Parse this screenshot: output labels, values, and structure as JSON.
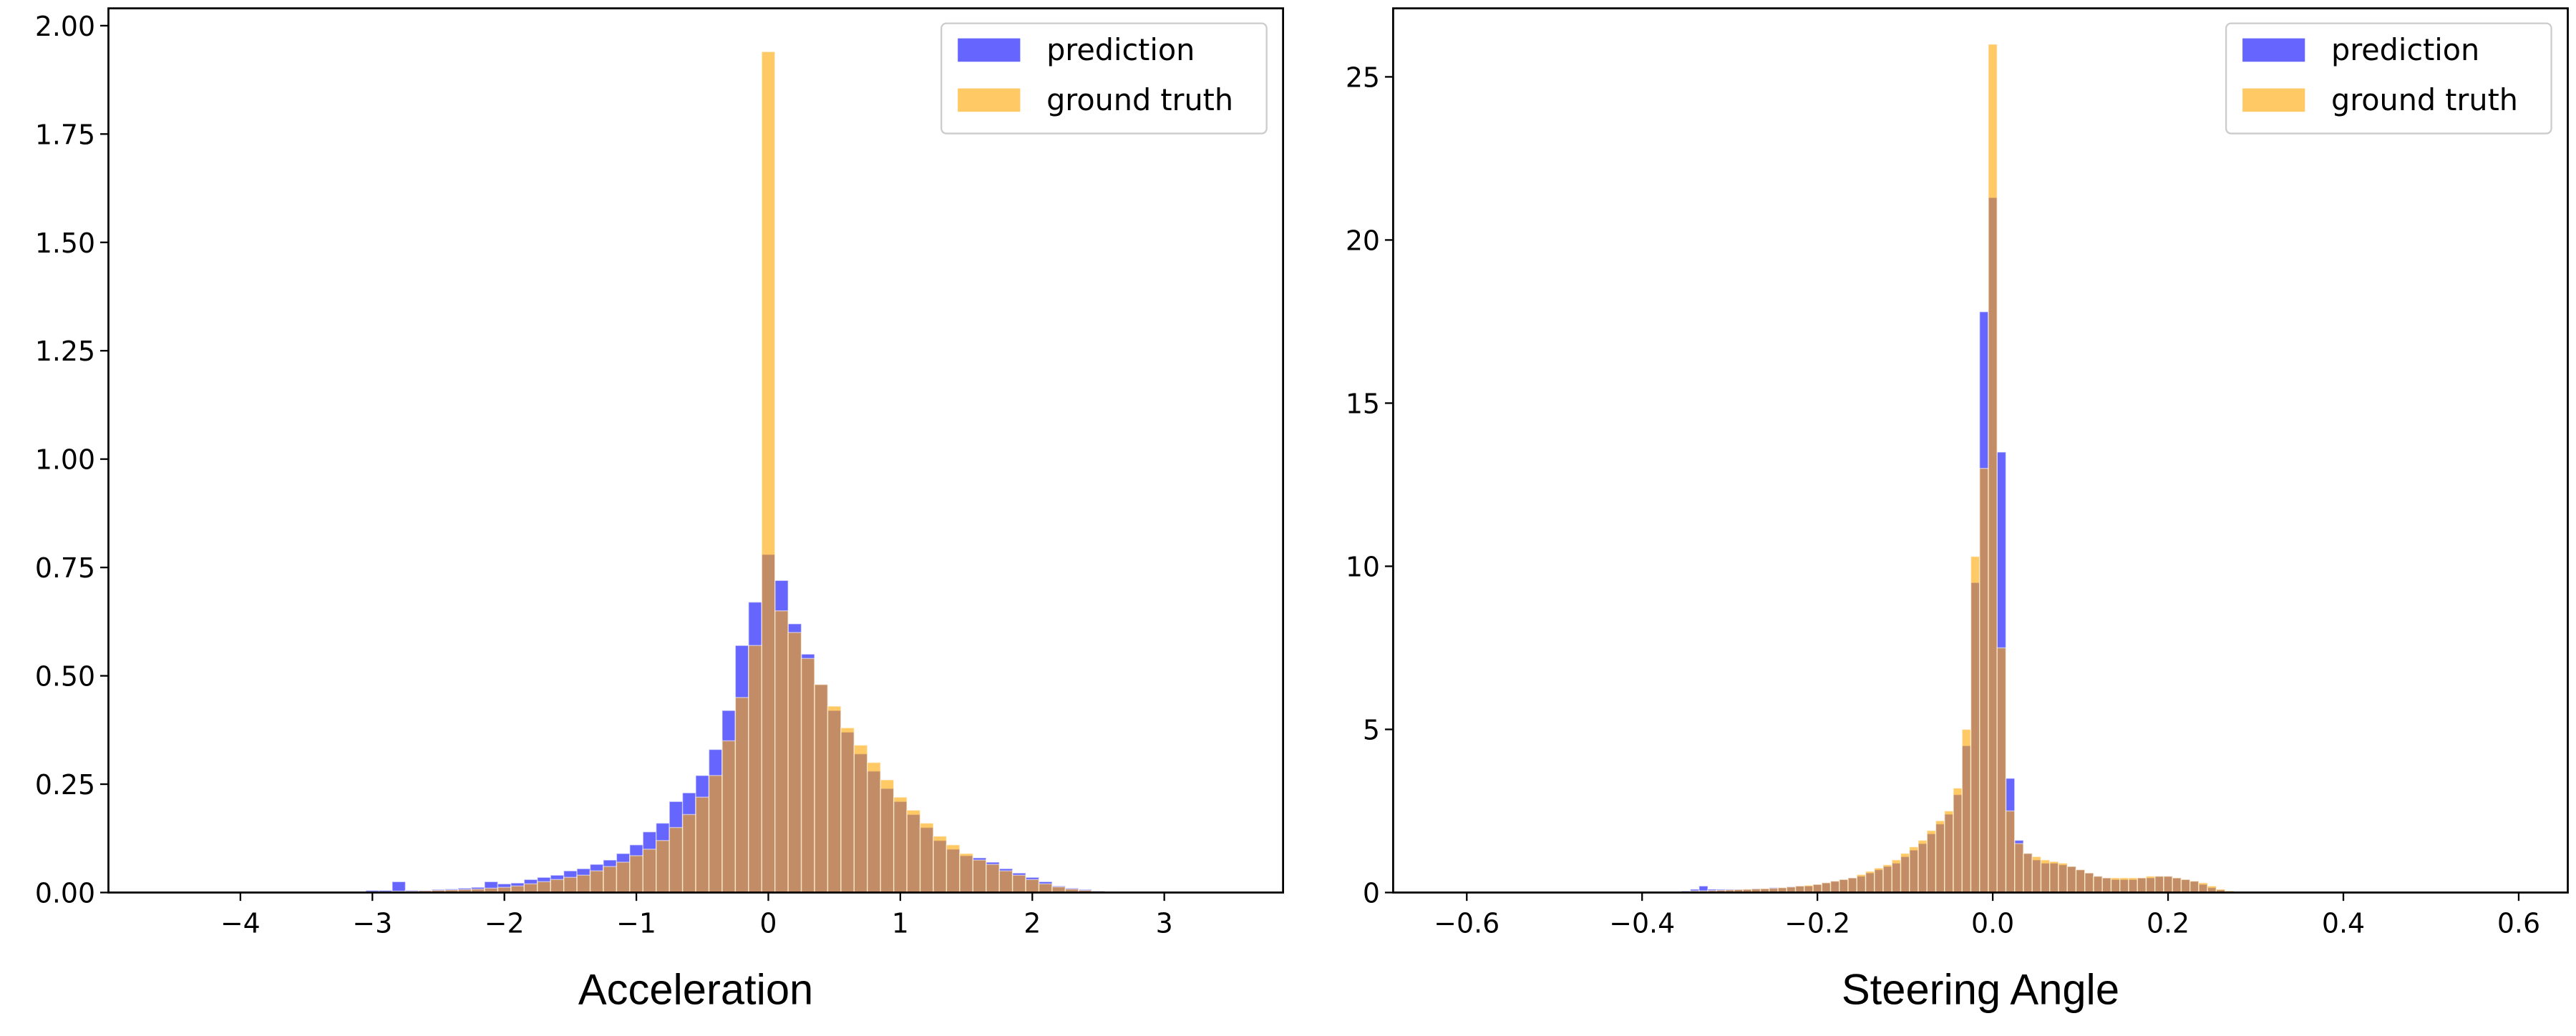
{
  "chart_data": [
    {
      "type": "histogram",
      "xlabel": "Acceleration",
      "bins": [
        -3.05,
        -2.95,
        -2.85,
        -2.75,
        -2.65,
        -2.55,
        -2.45,
        -2.35,
        -2.25,
        -2.15,
        -2.05,
        -1.95,
        -1.85,
        -1.75,
        -1.65,
        -1.55,
        -1.45,
        -1.35,
        -1.25,
        -1.15,
        -1.05,
        -0.95,
        -0.85,
        -0.75,
        -0.65,
        -0.55,
        -0.45,
        -0.35,
        -0.25,
        -0.15,
        -0.05,
        0.05,
        0.15,
        0.25,
        0.35,
        0.45,
        0.55,
        0.65,
        0.75,
        0.85,
        0.95,
        1.05,
        1.15,
        1.25,
        1.35,
        1.45,
        1.55,
        1.65,
        1.75,
        1.85,
        1.95,
        2.05,
        2.15,
        2.25,
        2.35,
        2.45,
        2.55,
        2.65,
        2.75
      ],
      "series": [
        {
          "name": "prediction",
          "color": "#0000ff",
          "values": [
            0.005,
            0.005,
            0.025,
            0.005,
            0.005,
            0.007,
            0.008,
            0.01,
            0.012,
            0.025,
            0.02,
            0.022,
            0.03,
            0.035,
            0.04,
            0.05,
            0.055,
            0.065,
            0.075,
            0.09,
            0.11,
            0.14,
            0.16,
            0.21,
            0.23,
            0.27,
            0.33,
            0.42,
            0.57,
            0.67,
            0.78,
            0.72,
            0.62,
            0.55,
            0.48,
            0.42,
            0.37,
            0.32,
            0.28,
            0.24,
            0.21,
            0.18,
            0.15,
            0.12,
            0.1,
            0.085,
            0.08,
            0.07,
            0.055,
            0.045,
            0.035,
            0.025,
            0.015,
            0.01,
            0.007,
            0.004,
            0.002,
            0.001
          ]
        },
        {
          "name": "ground truth",
          "color": "#ffa500",
          "values": [
            0.002,
            0.002,
            0.003,
            0.003,
            0.004,
            0.005,
            0.006,
            0.007,
            0.008,
            0.01,
            0.012,
            0.015,
            0.02,
            0.025,
            0.03,
            0.035,
            0.04,
            0.05,
            0.06,
            0.07,
            0.085,
            0.1,
            0.12,
            0.15,
            0.18,
            0.22,
            0.27,
            0.35,
            0.45,
            0.57,
            1.94,
            0.65,
            0.6,
            0.54,
            0.48,
            0.43,
            0.38,
            0.34,
            0.3,
            0.26,
            0.22,
            0.19,
            0.16,
            0.13,
            0.11,
            0.09,
            0.075,
            0.065,
            0.05,
            0.04,
            0.03,
            0.02,
            0.013,
            0.008,
            0.005,
            0.003,
            0.002,
            0.001
          ]
        }
      ],
      "alpha": 0.6,
      "legend": "upper right",
      "xlim": [
        -5.0,
        3.9
      ],
      "ylim": [
        0,
        2.04
      ],
      "xticks": [
        {
          "value": -4,
          "label": "−4"
        },
        {
          "value": -3,
          "label": "−3"
        },
        {
          "value": -2,
          "label": "−2"
        },
        {
          "value": -1,
          "label": "−1"
        },
        0,
        1,
        2,
        3
      ],
      "yticks": [
        {
          "value": 0,
          "label": "0.00"
        },
        {
          "value": 0.25,
          "label": "0.25"
        },
        {
          "value": 0.5,
          "label": "0.50"
        },
        {
          "value": 0.75,
          "label": "0.75"
        },
        {
          "value": 1,
          "label": "1.00"
        },
        {
          "value": 1.25,
          "label": "1.25"
        },
        {
          "value": 1.5,
          "label": "1.50"
        },
        {
          "value": 1.75,
          "label": "1.75"
        },
        {
          "value": 2,
          "label": "2.00"
        }
      ]
    },
    {
      "type": "histogram",
      "xlabel": "Steering Angle",
      "bins": [
        -0.355,
        -0.345,
        -0.335,
        -0.325,
        -0.315,
        -0.305,
        -0.295,
        -0.285,
        -0.275,
        -0.265,
        -0.255,
        -0.245,
        -0.235,
        -0.225,
        -0.215,
        -0.205,
        -0.195,
        -0.185,
        -0.175,
        -0.165,
        -0.155,
        -0.145,
        -0.135,
        -0.125,
        -0.115,
        -0.105,
        -0.095,
        -0.085,
        -0.075,
        -0.065,
        -0.055,
        -0.045,
        -0.035,
        -0.025,
        -0.015,
        -0.005,
        0.005,
        0.015,
        0.025,
        0.035,
        0.045,
        0.055,
        0.065,
        0.075,
        0.085,
        0.095,
        0.105,
        0.115,
        0.125,
        0.135,
        0.145,
        0.155,
        0.165,
        0.175,
        0.185,
        0.195,
        0.205,
        0.215,
        0.225,
        0.235,
        0.245,
        0.255,
        0.265,
        0.275
      ],
      "series": [
        {
          "name": "prediction",
          "color": "#0000ff",
          "values": [
            0.05,
            0.1,
            0.2,
            0.1,
            0.1,
            0.1,
            0.1,
            0.1,
            0.12,
            0.12,
            0.15,
            0.15,
            0.18,
            0.2,
            0.2,
            0.25,
            0.3,
            0.35,
            0.4,
            0.45,
            0.5,
            0.6,
            0.7,
            0.8,
            0.9,
            1.1,
            1.3,
            1.5,
            1.8,
            2.1,
            2.4,
            3.0,
            4.5,
            9.5,
            17.8,
            21.3,
            13.5,
            3.5,
            1.6,
            1.2,
            1.0,
            0.9,
            0.9,
            0.85,
            0.8,
            0.7,
            0.6,
            0.5,
            0.45,
            0.4,
            0.4,
            0.4,
            0.45,
            0.45,
            0.5,
            0.5,
            0.45,
            0.4,
            0.35,
            0.25,
            0.15,
            0.08,
            0.04
          ]
        },
        {
          "name": "ground truth",
          "color": "#ffa500",
          "values": [
            0.03,
            0.05,
            0.05,
            0.06,
            0.07,
            0.08,
            0.09,
            0.1,
            0.11,
            0.12,
            0.13,
            0.15,
            0.17,
            0.2,
            0.22,
            0.25,
            0.3,
            0.35,
            0.4,
            0.45,
            0.55,
            0.65,
            0.75,
            0.85,
            1.0,
            1.2,
            1.4,
            1.6,
            1.9,
            2.2,
            2.5,
            3.2,
            5.0,
            10.3,
            13.0,
            26.0,
            7.5,
            2.5,
            1.5,
            1.2,
            1.1,
            1.0,
            0.95,
            0.9,
            0.8,
            0.7,
            0.6,
            0.5,
            0.45,
            0.45,
            0.45,
            0.45,
            0.45,
            0.5,
            0.5,
            0.5,
            0.45,
            0.4,
            0.35,
            0.3,
            0.2,
            0.1,
            0.05
          ]
        }
      ],
      "alpha": 0.6,
      "legend": "upper right",
      "xlim": [
        -0.684,
        0.656
      ],
      "ylim": [
        0,
        27.1
      ],
      "xticks": [
        {
          "value": -0.6,
          "label": "−0.6"
        },
        {
          "value": -0.4,
          "label": "−0.4"
        },
        {
          "value": -0.2,
          "label": "−0.2"
        },
        {
          "value": 0,
          "label": "0.0"
        },
        0.2,
        0.4,
        0.6
      ],
      "yticks": [
        0,
        5,
        10,
        15,
        20,
        25
      ]
    }
  ]
}
